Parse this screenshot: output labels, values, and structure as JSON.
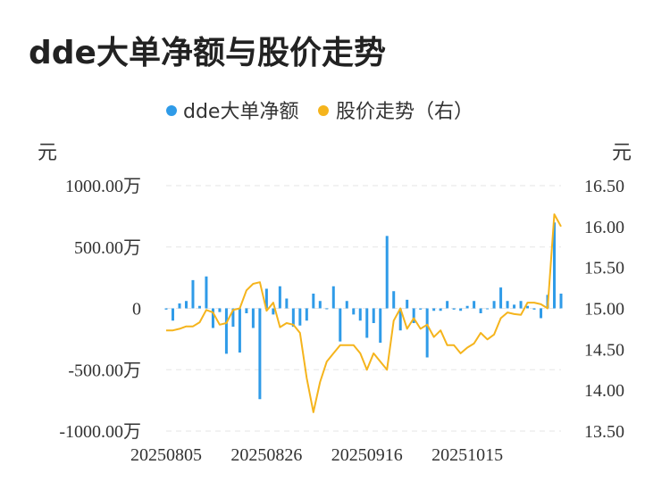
{
  "title": "dde大单净额与股价走势",
  "chart_data": {
    "type": "bar+line",
    "legend": [
      "dde大单净额",
      "股价走势（右）"
    ],
    "legend_placement": "top-center",
    "ylabel_left": "元",
    "ylabel_right": "元",
    "left_ticks": [
      "1000.00万",
      "500.00万",
      "0",
      "-500.00万",
      "-1000.00万"
    ],
    "left_range": [
      -1000,
      1000
    ],
    "right_ticks": [
      "16.50",
      "16.00",
      "15.50",
      "15.00",
      "14.50",
      "14.00",
      "13.50"
    ],
    "right_range": [
      13.5,
      16.5
    ],
    "x_ticks": [
      "20250805",
      "20250826",
      "20250916",
      "20251015"
    ],
    "x_tick_index": [
      0,
      15,
      30,
      45
    ],
    "grid": true,
    "colors": {
      "bar": "#2f9be8",
      "line": "#f5b41c",
      "grid": "#e6e6e6"
    },
    "series": [
      {
        "name": "dde大单净额",
        "type": "bar",
        "unit": "万元",
        "values": [
          -10,
          -100,
          40,
          60,
          230,
          20,
          260,
          -160,
          -30,
          -370,
          -150,
          -360,
          -40,
          -160,
          -740,
          160,
          -50,
          180,
          80,
          -150,
          -140,
          -100,
          120,
          60,
          0,
          180,
          -270,
          60,
          -50,
          -100,
          -240,
          -120,
          -280,
          590,
          140,
          -180,
          70,
          -120,
          -10,
          -400,
          -20,
          -20,
          60,
          -10,
          -20,
          20,
          60,
          -40,
          0,
          60,
          170,
          60,
          30,
          60,
          20,
          -10,
          -80,
          110,
          700,
          120
        ]
      },
      {
        "name": "股价走势（右）",
        "type": "line",
        "unit": "元",
        "values": [
          14.73,
          14.73,
          14.75,
          14.78,
          14.78,
          14.83,
          14.98,
          14.95,
          14.8,
          14.82,
          14.98,
          15.0,
          15.22,
          15.3,
          15.32,
          14.97,
          15.07,
          14.77,
          14.82,
          14.8,
          14.7,
          14.15,
          13.73,
          14.1,
          14.35,
          14.45,
          14.55,
          14.55,
          14.55,
          14.45,
          14.25,
          14.45,
          14.35,
          14.25,
          14.85,
          15.0,
          14.75,
          14.88,
          14.75,
          14.8,
          14.65,
          14.73,
          14.55,
          14.55,
          14.45,
          14.52,
          14.57,
          14.7,
          14.62,
          14.68,
          14.88,
          14.95,
          14.93,
          14.92,
          15.07,
          15.07,
          15.05,
          15.0,
          16.15,
          16.0
        ]
      }
    ]
  }
}
